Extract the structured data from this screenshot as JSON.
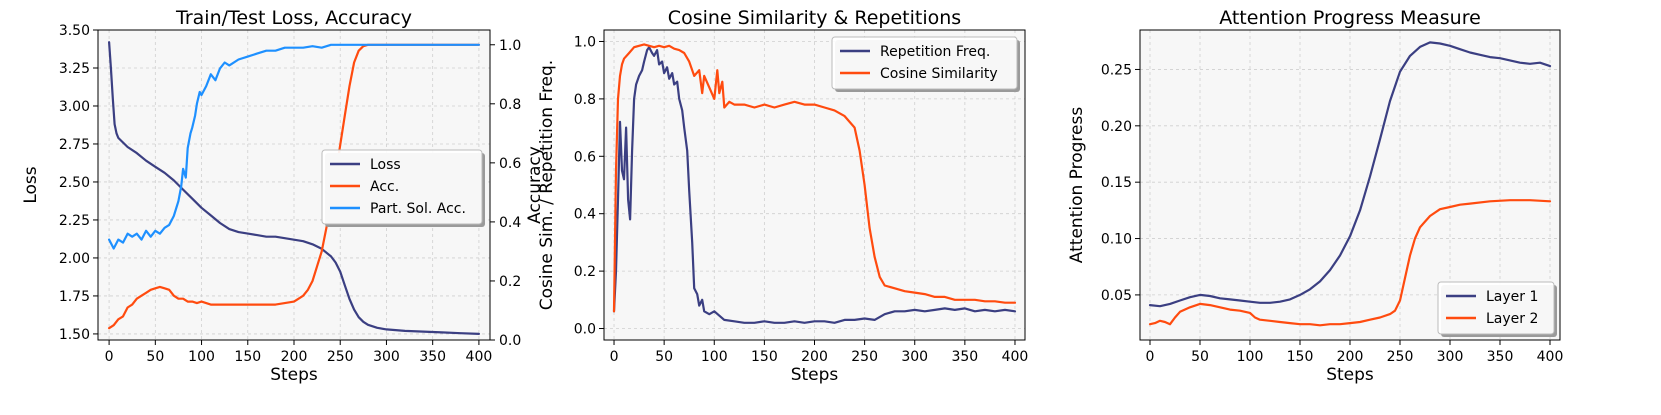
{
  "colors": {
    "navy": "#3b3f82",
    "orange": "#ff4b0f",
    "blue": "#1e90ff"
  },
  "chart_data": [
    {
      "type": "line",
      "title": "Train/Test Loss, Accuracy",
      "xlabel": "Steps",
      "ylabel": "Loss",
      "y2label": "Accuracy",
      "xlim": [
        -12,
        412
      ],
      "ylim": [
        1.46,
        3.5
      ],
      "y2lim": [
        0.0,
        1.05
      ],
      "xticks": [
        0,
        50,
        100,
        150,
        200,
        250,
        300,
        350,
        400
      ],
      "yticks": [
        1.5,
        1.75,
        2.0,
        2.25,
        2.5,
        2.75,
        3.0,
        3.25,
        3.5
      ],
      "ytick_labels": [
        "1.50",
        "1.75",
        "2.00",
        "2.25",
        "2.50",
        "2.75",
        "3.00",
        "3.25",
        "3.50"
      ],
      "y2ticks": [
        0.0,
        0.2,
        0.4,
        0.6,
        0.8,
        1.0
      ],
      "y2tick_labels": [
        "0.0",
        "0.2",
        "0.4",
        "0.6",
        "0.8",
        "1.0"
      ],
      "grid": true,
      "legend_position": "center-right",
      "series": [
        {
          "name": "Loss",
          "axis": "left",
          "color": "#3b3f82",
          "x": [
            0,
            2,
            4,
            6,
            8,
            10,
            15,
            20,
            30,
            40,
            50,
            60,
            70,
            80,
            90,
            100,
            110,
            120,
            130,
            140,
            150,
            160,
            170,
            180,
            190,
            200,
            210,
            220,
            230,
            240,
            245,
            250,
            255,
            260,
            265,
            270,
            275,
            280,
            290,
            300,
            320,
            340,
            360,
            380,
            400
          ],
          "y": [
            3.42,
            3.25,
            3.05,
            2.88,
            2.82,
            2.79,
            2.76,
            2.73,
            2.69,
            2.64,
            2.6,
            2.56,
            2.51,
            2.45,
            2.39,
            2.33,
            2.28,
            2.23,
            2.19,
            2.17,
            2.16,
            2.15,
            2.14,
            2.14,
            2.13,
            2.12,
            2.11,
            2.09,
            2.06,
            2.01,
            1.97,
            1.91,
            1.82,
            1.73,
            1.66,
            1.61,
            1.58,
            1.56,
            1.54,
            1.53,
            1.52,
            1.515,
            1.51,
            1.505,
            1.5
          ]
        },
        {
          "name": "Acc.",
          "axis": "right",
          "color": "#ff4b0f",
          "x": [
            0,
            5,
            10,
            15,
            20,
            25,
            30,
            35,
            40,
            45,
            50,
            55,
            60,
            65,
            70,
            75,
            80,
            85,
            90,
            95,
            100,
            110,
            120,
            130,
            140,
            150,
            160,
            170,
            180,
            190,
            200,
            205,
            210,
            215,
            220,
            225,
            230,
            235,
            240,
            245,
            250,
            255,
            260,
            265,
            270,
            275,
            280,
            290,
            300,
            350,
            400
          ],
          "y": [
            0.04,
            0.05,
            0.07,
            0.08,
            0.11,
            0.12,
            0.14,
            0.15,
            0.16,
            0.17,
            0.175,
            0.18,
            0.175,
            0.17,
            0.15,
            0.14,
            0.14,
            0.13,
            0.13,
            0.125,
            0.13,
            0.12,
            0.12,
            0.12,
            0.12,
            0.12,
            0.12,
            0.12,
            0.12,
            0.125,
            0.13,
            0.14,
            0.15,
            0.17,
            0.2,
            0.25,
            0.3,
            0.38,
            0.46,
            0.56,
            0.66,
            0.76,
            0.86,
            0.94,
            0.98,
            0.995,
            1.0,
            1.0,
            1.0,
            1.0,
            1.0
          ]
        },
        {
          "name": "Part. Sol. Acc.",
          "axis": "right",
          "color": "#1e90ff",
          "x": [
            0,
            5,
            10,
            15,
            20,
            25,
            30,
            35,
            40,
            45,
            50,
            55,
            60,
            65,
            70,
            75,
            78,
            80,
            83,
            85,
            88,
            90,
            93,
            95,
            98,
            100,
            105,
            110,
            115,
            120,
            125,
            130,
            140,
            150,
            160,
            170,
            180,
            190,
            200,
            210,
            220,
            230,
            240,
            250,
            260,
            270,
            280,
            300,
            350,
            400
          ],
          "y": [
            0.34,
            0.31,
            0.34,
            0.33,
            0.36,
            0.35,
            0.36,
            0.34,
            0.37,
            0.35,
            0.37,
            0.36,
            0.38,
            0.39,
            0.42,
            0.47,
            0.52,
            0.58,
            0.55,
            0.65,
            0.7,
            0.72,
            0.76,
            0.8,
            0.84,
            0.83,
            0.86,
            0.9,
            0.88,
            0.92,
            0.94,
            0.93,
            0.95,
            0.96,
            0.97,
            0.98,
            0.98,
            0.99,
            0.99,
            0.99,
            0.995,
            0.99,
            1.0,
            1.0,
            1.0,
            1.0,
            1.0,
            1.0,
            1.0,
            1.0
          ]
        }
      ]
    },
    {
      "type": "line",
      "title": "Cosine Similarity & Repetitions",
      "xlabel": "Steps",
      "ylabel": "Cosine Sim. / Repetition Freq.",
      "xlim": [
        -10,
        410
      ],
      "ylim": [
        -0.04,
        1.04
      ],
      "xticks": [
        0,
        50,
        100,
        150,
        200,
        250,
        300,
        350,
        400
      ],
      "yticks": [
        0.0,
        0.2,
        0.4,
        0.6,
        0.8,
        1.0
      ],
      "ytick_labels": [
        "0.0",
        "0.2",
        "0.4",
        "0.6",
        "0.8",
        "1.0"
      ],
      "grid": true,
      "legend_position": "top-right",
      "series": [
        {
          "name": "Repetition Freq.",
          "color": "#3b3f82",
          "x": [
            0,
            2,
            4,
            6,
            8,
            10,
            12,
            14,
            16,
            18,
            20,
            22,
            25,
            28,
            30,
            33,
            35,
            38,
            40,
            43,
            45,
            48,
            50,
            53,
            55,
            58,
            60,
            63,
            65,
            68,
            70,
            73,
            75,
            78,
            80,
            83,
            85,
            88,
            90,
            95,
            100,
            110,
            120,
            130,
            140,
            150,
            160,
            170,
            180,
            190,
            200,
            210,
            220,
            230,
            240,
            250,
            260,
            270,
            280,
            290,
            300,
            310,
            320,
            330,
            340,
            350,
            360,
            370,
            380,
            390,
            400
          ],
          "y": [
            0.06,
            0.2,
            0.45,
            0.72,
            0.55,
            0.52,
            0.7,
            0.45,
            0.38,
            0.62,
            0.8,
            0.85,
            0.88,
            0.9,
            0.93,
            0.97,
            0.98,
            0.96,
            0.95,
            0.97,
            0.92,
            0.93,
            0.89,
            0.91,
            0.87,
            0.89,
            0.85,
            0.86,
            0.8,
            0.76,
            0.7,
            0.62,
            0.48,
            0.3,
            0.14,
            0.12,
            0.08,
            0.1,
            0.06,
            0.05,
            0.06,
            0.03,
            0.025,
            0.02,
            0.02,
            0.025,
            0.02,
            0.02,
            0.025,
            0.02,
            0.025,
            0.025,
            0.02,
            0.03,
            0.03,
            0.035,
            0.03,
            0.05,
            0.06,
            0.06,
            0.065,
            0.06,
            0.065,
            0.07,
            0.065,
            0.07,
            0.06,
            0.065,
            0.06,
            0.065,
            0.06
          ]
        },
        {
          "name": "Cosine Similarity",
          "color": "#ff4b0f",
          "x": [
            0,
            2,
            4,
            6,
            8,
            10,
            15,
            20,
            25,
            30,
            35,
            40,
            45,
            50,
            55,
            60,
            65,
            70,
            75,
            78,
            80,
            85,
            88,
            90,
            95,
            100,
            103,
            105,
            108,
            110,
            115,
            120,
            130,
            140,
            150,
            160,
            170,
            180,
            190,
            200,
            210,
            220,
            230,
            235,
            240,
            245,
            250,
            255,
            260,
            265,
            270,
            280,
            290,
            300,
            310,
            320,
            330,
            340,
            350,
            360,
            370,
            380,
            390,
            400
          ],
          "y": [
            0.06,
            0.55,
            0.8,
            0.88,
            0.92,
            0.94,
            0.96,
            0.98,
            0.985,
            0.99,
            0.985,
            0.98,
            0.985,
            0.98,
            0.985,
            0.975,
            0.97,
            0.96,
            0.93,
            0.9,
            0.88,
            0.9,
            0.82,
            0.88,
            0.84,
            0.8,
            0.9,
            0.82,
            0.86,
            0.77,
            0.79,
            0.78,
            0.78,
            0.77,
            0.78,
            0.77,
            0.78,
            0.79,
            0.78,
            0.78,
            0.77,
            0.76,
            0.74,
            0.72,
            0.7,
            0.62,
            0.5,
            0.35,
            0.25,
            0.18,
            0.15,
            0.14,
            0.13,
            0.125,
            0.12,
            0.11,
            0.11,
            0.1,
            0.1,
            0.1,
            0.095,
            0.095,
            0.09,
            0.09
          ]
        }
      ]
    },
    {
      "type": "line",
      "title": "Attention Progress Measure",
      "xlabel": "Steps",
      "ylabel": "Attention Progress",
      "xlim": [
        -10,
        410
      ],
      "ylim": [
        0.01,
        0.285
      ],
      "xticks": [
        0,
        50,
        100,
        150,
        200,
        250,
        300,
        350,
        400
      ],
      "yticks": [
        0.05,
        0.1,
        0.15,
        0.2,
        0.25
      ],
      "ytick_labels": [
        "0.05",
        "0.10",
        "0.15",
        "0.20",
        "0.25"
      ],
      "grid": true,
      "legend_position": "bottom-right",
      "series": [
        {
          "name": "Layer 1",
          "color": "#3b3f82",
          "x": [
            0,
            10,
            20,
            30,
            40,
            50,
            60,
            70,
            80,
            90,
            100,
            110,
            120,
            130,
            140,
            150,
            160,
            170,
            180,
            190,
            200,
            210,
            220,
            230,
            240,
            250,
            260,
            270,
            280,
            290,
            300,
            310,
            320,
            330,
            340,
            350,
            360,
            370,
            380,
            390,
            400
          ],
          "y": [
            0.041,
            0.04,
            0.042,
            0.045,
            0.048,
            0.05,
            0.049,
            0.047,
            0.046,
            0.045,
            0.044,
            0.043,
            0.043,
            0.044,
            0.046,
            0.05,
            0.055,
            0.062,
            0.072,
            0.085,
            0.102,
            0.125,
            0.155,
            0.188,
            0.222,
            0.248,
            0.262,
            0.27,
            0.274,
            0.273,
            0.271,
            0.268,
            0.265,
            0.263,
            0.261,
            0.26,
            0.258,
            0.256,
            0.255,
            0.256,
            0.253
          ]
        },
        {
          "name": "Layer 2",
          "color": "#ff4b0f",
          "x": [
            0,
            5,
            10,
            15,
            20,
            25,
            30,
            40,
            50,
            60,
            70,
            80,
            90,
            100,
            105,
            110,
            120,
            130,
            140,
            150,
            160,
            170,
            180,
            190,
            200,
            210,
            220,
            230,
            240,
            245,
            250,
            255,
            260,
            265,
            270,
            275,
            280,
            290,
            300,
            310,
            320,
            340,
            360,
            380,
            400
          ],
          "y": [
            0.024,
            0.025,
            0.027,
            0.026,
            0.024,
            0.03,
            0.035,
            0.039,
            0.042,
            0.041,
            0.039,
            0.037,
            0.036,
            0.034,
            0.03,
            0.028,
            0.027,
            0.026,
            0.025,
            0.024,
            0.024,
            0.023,
            0.024,
            0.024,
            0.025,
            0.026,
            0.028,
            0.03,
            0.033,
            0.036,
            0.045,
            0.065,
            0.085,
            0.1,
            0.11,
            0.115,
            0.12,
            0.126,
            0.128,
            0.13,
            0.131,
            0.133,
            0.134,
            0.134,
            0.133
          ]
        }
      ]
    }
  ]
}
